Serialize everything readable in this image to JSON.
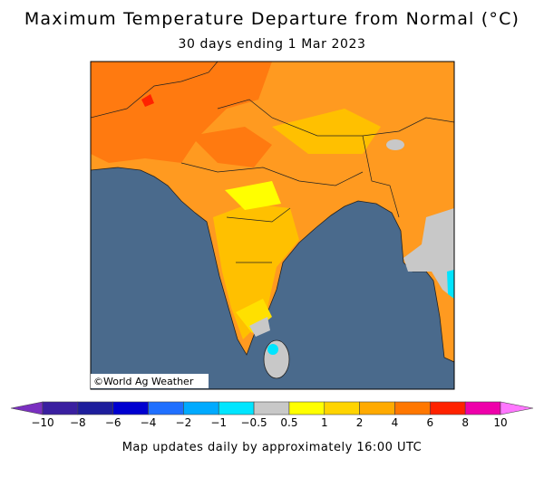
{
  "header": {
    "title": "Maximum Temperature Departure from Normal (°C)",
    "subtitle": "30 days ending 1 Mar 2023"
  },
  "map": {
    "credit": "©World Ag Weather"
  },
  "legend": {
    "labels": [
      "−10",
      "−8",
      "−6",
      "−4",
      "−2",
      "−1",
      "−0.5",
      "0.5",
      "1",
      "2",
      "4",
      "6",
      "8",
      "10"
    ],
    "colors": [
      "#7a2fc0",
      "#3a1fa0",
      "#1e1e9c",
      "#0000d0",
      "#1f6fff",
      "#00aaff",
      "#00e5ff",
      "#c8c8c8",
      "#ffff00",
      "#ffd400",
      "#ffaa00",
      "#ff7700",
      "#ff2200",
      "#ee00aa",
      "#ff77ff"
    ]
  },
  "footer": "Map updates daily by approximately 16:00 UTC"
}
